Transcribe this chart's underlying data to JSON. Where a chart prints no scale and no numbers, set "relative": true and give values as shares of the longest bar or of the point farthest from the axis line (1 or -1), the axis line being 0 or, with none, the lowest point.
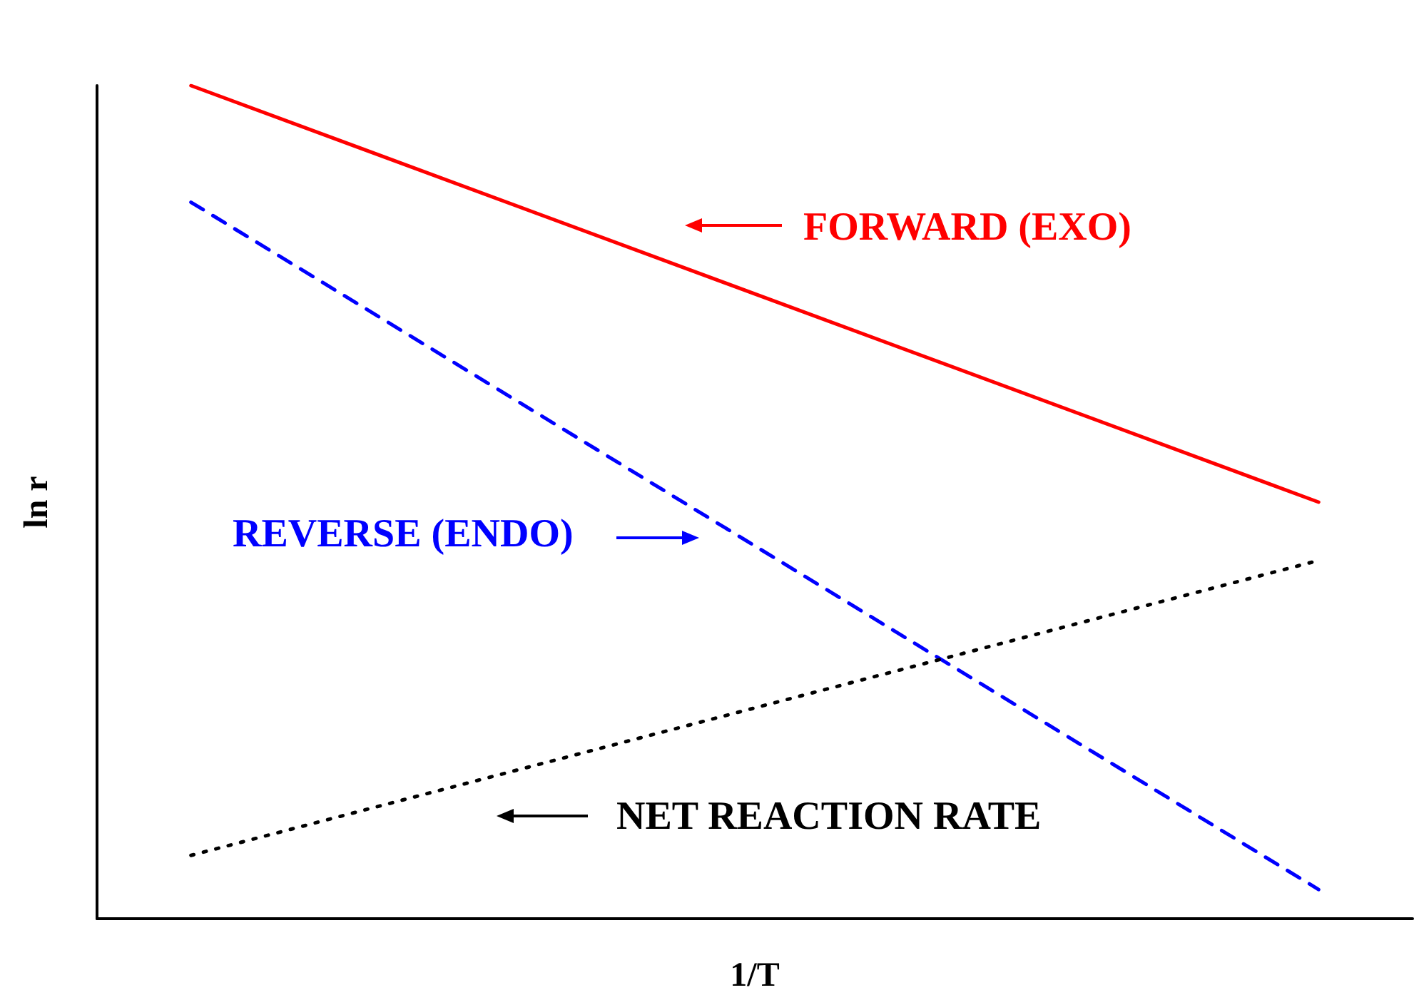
{
  "chart_data": {
    "type": "line",
    "relative": true,
    "xlabel": "1/T",
    "ylabel": "ln r",
    "categories": [
      null,
      null,
      null,
      null,
      null,
      null,
      null
    ],
    "marker": "none",
    "series": [
      {
        "color": "#ff0000",
        "line_style": "solid",
        "values": [
          1,
          null,
          null,
          null,
          null,
          null,
          0.5
        ]
      },
      {
        "color": "#0000ff",
        "line_style": "dashed",
        "values": [
          0.86,
          null,
          null,
          null,
          null,
          null,
          0.035
        ]
      },
      {
        "color": "#000000",
        "line_style": "dotted",
        "values": [
          0.076,
          null,
          null,
          null,
          null,
          null,
          0.43
        ]
      }
    ],
    "annotations": [
      "FORWARD (EXO)",
      "REVERSE (ENDO)",
      "NET REACTION RATE"
    ]
  }
}
